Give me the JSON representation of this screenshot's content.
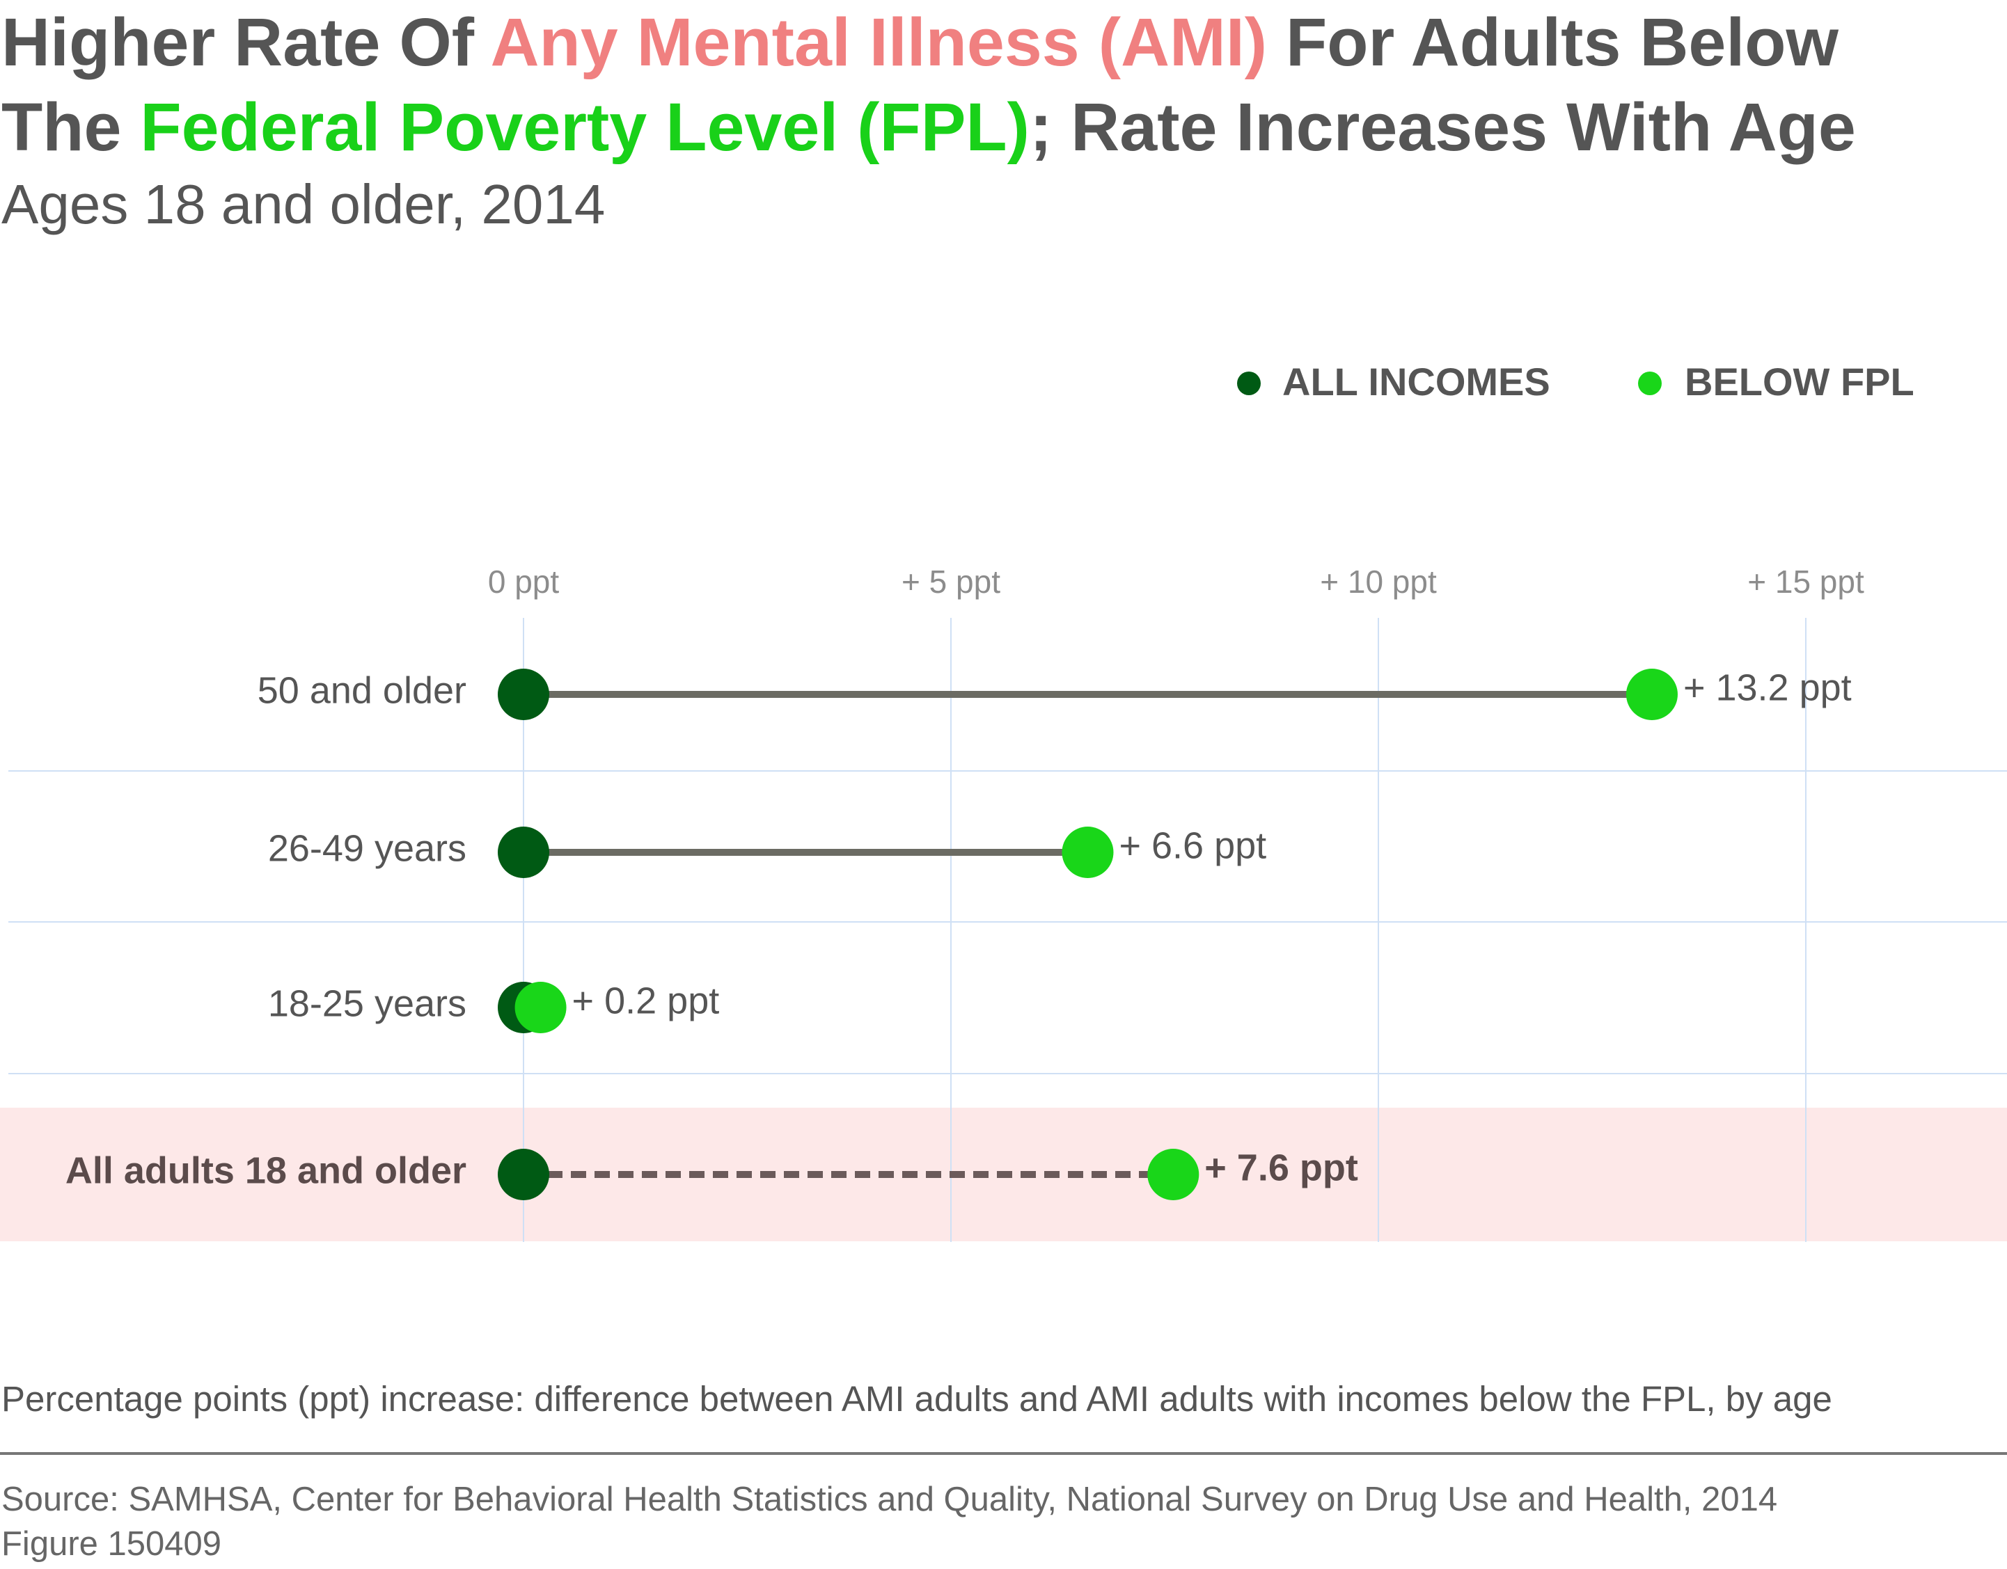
{
  "title": {
    "part1": "Higher Rate Of ",
    "highlight1": "Any Mental Illness (AMI)",
    "part2": " For Adults Below",
    "part3": "The ",
    "highlight2": "Federal Poverty Level (FPL)",
    "part4": "; Rate Increases With Age"
  },
  "subtitle": "Ages 18 and older, 2014",
  "colors": {
    "title_text": "#555555",
    "ami_highlight": "#f08080",
    "fpl_highlight": "#19d119",
    "all_incomes_dot": "#005a14",
    "below_fpl_dot": "#19d619",
    "connector_line": "#6b6b63",
    "dashed_connector": "#6b5a5a",
    "grid": "#cfe0f5",
    "highlight_band": "#fde8e8"
  },
  "legend": [
    {
      "label": "ALL INCOMES",
      "color": "#005a14"
    },
    {
      "label": "BELOW FPL",
      "color": "#19d619"
    }
  ],
  "chart_data": {
    "type": "dot-range",
    "title": "",
    "xlabel": "",
    "ylabel": "",
    "xlim": [
      0,
      15
    ],
    "x_ticks": [
      {
        "value": 0,
        "label": "0 ppt"
      },
      {
        "value": 5,
        "label": "+ 5 ppt"
      },
      {
        "value": 10,
        "label": "+ 10 ppt"
      },
      {
        "value": 15,
        "label": "+ 15 ppt"
      }
    ],
    "grid": true,
    "legend_position": "top-right",
    "series": [
      {
        "name": "ALL INCOMES",
        "values": [
          0,
          0,
          0,
          0
        ]
      },
      {
        "name": "BELOW FPL",
        "values": [
          13.2,
          6.6,
          0.2,
          7.6
        ]
      }
    ],
    "categories": [
      "50 and older",
      "26-49 years",
      "18-25 years",
      "All adults 18 and older"
    ],
    "rows": [
      {
        "label": "50 and older",
        "all_incomes": 0,
        "below_fpl": 13.2,
        "value_label": "+ 13.2 ppt",
        "emphasis": false
      },
      {
        "label": "26-49 years",
        "all_incomes": 0,
        "below_fpl": 6.6,
        "value_label": "+ 6.6 ppt",
        "emphasis": false
      },
      {
        "label": "18-25 years",
        "all_incomes": 0,
        "below_fpl": 0.2,
        "value_label": "+ 0.2 ppt",
        "emphasis": false
      },
      {
        "label": "All adults 18 and older",
        "all_incomes": 0,
        "below_fpl": 7.6,
        "value_label": "+ 7.6 ppt",
        "emphasis": true
      }
    ]
  },
  "note": "Percentage points (ppt) increase: difference between AMI adults and AMI adults with incomes below the FPL, by age",
  "source": {
    "line1": "Source: SAMHSA, Center for Behavioral Health Statistics and Quality, National Survey on Drug Use and Health, 2014",
    "line2": "Figure 150409"
  }
}
